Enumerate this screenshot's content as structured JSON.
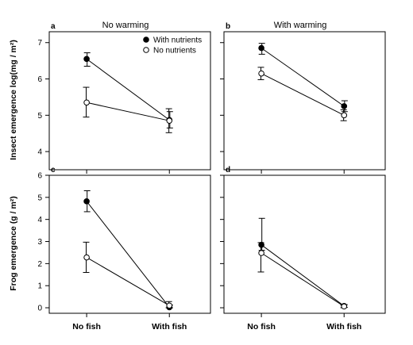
{
  "figure": {
    "rows": [
      {
        "ylabel": "Insect emergence log(mg / m²)",
        "ylim": [
          3.5,
          7.3
        ],
        "yticks": [
          4,
          5,
          6,
          7
        ],
        "ytick_labels": [
          "4",
          "5",
          "6",
          "7"
        ]
      },
      {
        "ylabel": "Frog emergence (g / m²)",
        "ylim": [
          -0.25,
          6
        ],
        "yticks": [
          0,
          1,
          2,
          3,
          4,
          5,
          6
        ],
        "ytick_labels": [
          "0",
          "1",
          "2",
          "3",
          "4",
          "5",
          "6"
        ]
      }
    ],
    "columns": [
      {
        "title": "No warming"
      },
      {
        "title": "With warming"
      }
    ],
    "legend": {
      "placement": "top-right of panel a",
      "items": [
        {
          "label": "With nutrients",
          "marker": "filled-circle"
        },
        {
          "label": "No nutrients",
          "marker": "open-circle"
        }
      ]
    }
  },
  "chart_data": [
    {
      "type": "line",
      "panel": "a",
      "title": "No warming",
      "categories": [
        "No fish",
        "With fish"
      ],
      "ylabel": "Insect emergence log(mg / m²)",
      "ylim": [
        3.5,
        7.3
      ],
      "series": [
        {
          "name": "With nutrients",
          "values": [
            6.55,
            4.87
          ],
          "err_low": [
            6.35,
            4.65
          ],
          "err_high": [
            6.72,
            5.1
          ]
        },
        {
          "name": "No nutrients",
          "values": [
            5.35,
            4.85
          ],
          "err_low": [
            4.95,
            4.52
          ],
          "err_high": [
            5.77,
            5.18
          ]
        }
      ]
    },
    {
      "type": "line",
      "panel": "b",
      "title": "With warming",
      "categories": [
        "No fish",
        "With fish"
      ],
      "ylabel": "",
      "ylim": [
        3.5,
        7.3
      ],
      "series": [
        {
          "name": "With nutrients",
          "values": [
            6.85,
            5.25
          ],
          "err_low": [
            6.68,
            5.1
          ],
          "err_high": [
            6.98,
            5.4
          ]
        },
        {
          "name": "No nutrients",
          "values": [
            6.15,
            5.0
          ],
          "err_low": [
            5.98,
            4.85
          ],
          "err_high": [
            6.32,
            5.15
          ]
        }
      ]
    },
    {
      "type": "line",
      "panel": "c",
      "title": "",
      "categories": [
        "No fish",
        "With fish"
      ],
      "ylabel": "Frog emergence (g / m²)",
      "ylim": [
        -0.25,
        6
      ],
      "series": [
        {
          "name": "With nutrients",
          "values": [
            4.82,
            0.02
          ],
          "err_low": [
            4.35,
            0.0
          ],
          "err_high": [
            5.3,
            0.12
          ]
        },
        {
          "name": "No nutrients",
          "values": [
            2.28,
            0.1
          ],
          "err_low": [
            1.6,
            0.0
          ],
          "err_high": [
            2.97,
            0.28
          ]
        }
      ]
    },
    {
      "type": "line",
      "panel": "d",
      "title": "",
      "categories": [
        "No fish",
        "With fish"
      ],
      "ylabel": "",
      "ylim": [
        -0.25,
        6
      ],
      "series": [
        {
          "name": "With nutrients",
          "values": [
            2.85,
            0.08
          ],
          "err_low": [
            2.6,
            0.02
          ],
          "err_high": [
            4.05,
            0.14
          ]
        },
        {
          "name": "No nutrients",
          "values": [
            2.48,
            0.06
          ],
          "err_low": [
            1.62,
            0.0
          ],
          "err_high": [
            2.95,
            0.12
          ]
        }
      ]
    }
  ]
}
